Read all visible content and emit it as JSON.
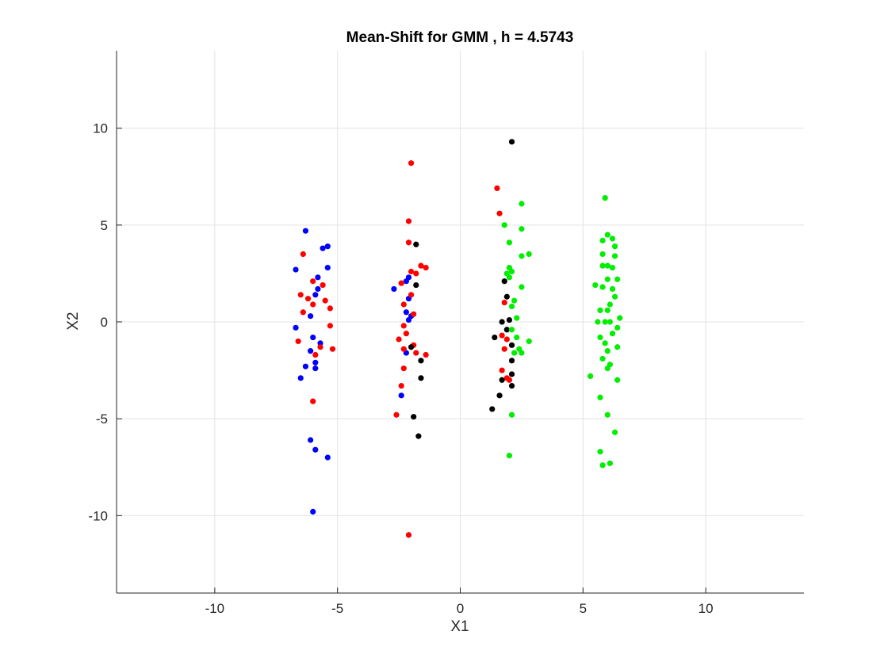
{
  "chart_data": {
    "type": "scatter",
    "title": "Mean-Shift for GMM , h = 4.5743",
    "xlabel": "X1",
    "ylabel": "X2",
    "xlim": [
      -14,
      14
    ],
    "ylim": [
      -14,
      14
    ],
    "xticks": [
      -10,
      -5,
      0,
      5,
      10
    ],
    "yticks": [
      -10,
      -5,
      0,
      5,
      10
    ],
    "grid": true,
    "series": [
      {
        "color": "#0000ff",
        "points": [
          [
            -6.3,
            4.7
          ],
          [
            -5.6,
            3.8
          ],
          [
            -5.4,
            3.9
          ],
          [
            -5.4,
            2.8
          ],
          [
            -6.7,
            2.7
          ],
          [
            -5.8,
            2.3
          ],
          [
            -5.8,
            1.7
          ],
          [
            -5.9,
            1.4
          ],
          [
            -6.1,
            0.3
          ],
          [
            -6.7,
            -0.3
          ],
          [
            -6.0,
            -0.8
          ],
          [
            -5.7,
            -1.1
          ],
          [
            -6.1,
            -1.5
          ],
          [
            -5.9,
            -2.1
          ],
          [
            -6.3,
            -2.3
          ],
          [
            -5.9,
            -2.4
          ],
          [
            -6.5,
            -2.9
          ],
          [
            -6.1,
            -6.1
          ],
          [
            -5.9,
            -6.6
          ],
          [
            -5.4,
            -7.0
          ],
          [
            -6.0,
            -9.8
          ],
          [
            -2.1,
            2.3
          ],
          [
            -2.2,
            2.1
          ],
          [
            -2.7,
            1.7
          ],
          [
            -2.2,
            0.5
          ],
          [
            -2.0,
            0.3
          ],
          [
            -2.1,
            0.1
          ],
          [
            -2.1,
            1.2
          ],
          [
            -2.2,
            -1.6
          ],
          [
            -2.4,
            -3.8
          ]
        ]
      },
      {
        "color": "#ff0000",
        "points": [
          [
            -6.4,
            3.5
          ],
          [
            -6.0,
            2.1
          ],
          [
            -5.6,
            1.9
          ],
          [
            -6.5,
            1.4
          ],
          [
            -6.2,
            1.2
          ],
          [
            -5.5,
            1.1
          ],
          [
            -6.0,
            0.9
          ],
          [
            -5.3,
            0.7
          ],
          [
            -6.4,
            0.5
          ],
          [
            -5.3,
            -0.2
          ],
          [
            -6.6,
            -1.0
          ],
          [
            -5.7,
            -1.3
          ],
          [
            -5.2,
            -1.4
          ],
          [
            -5.9,
            -1.7
          ],
          [
            -6.0,
            -4.1
          ],
          [
            -2.0,
            8.2
          ],
          [
            -2.1,
            5.2
          ],
          [
            -2.1,
            4.1
          ],
          [
            -1.6,
            2.9
          ],
          [
            -1.8,
            2.5
          ],
          [
            -2.0,
            2.6
          ],
          [
            -2.4,
            2.0
          ],
          [
            -2.0,
            1.4
          ],
          [
            -2.3,
            0.9
          ],
          [
            -1.9,
            0.4
          ],
          [
            -2.3,
            -0.2
          ],
          [
            -2.2,
            -0.6
          ],
          [
            -2.5,
            -0.9
          ],
          [
            -1.9,
            -1.2
          ],
          [
            -2.3,
            -1.4
          ],
          [
            -1.8,
            -1.6
          ],
          [
            -1.4,
            -1.7
          ],
          [
            -2.3,
            -2.4
          ],
          [
            -2.4,
            -3.3
          ],
          [
            -2.6,
            -4.8
          ],
          [
            -2.1,
            -11.0
          ],
          [
            -1.4,
            2.8
          ],
          [
            1.5,
            6.9
          ],
          [
            1.6,
            5.6
          ],
          [
            1.8,
            1.0
          ],
          [
            1.7,
            -0.7
          ],
          [
            1.9,
            -0.9
          ],
          [
            1.8,
            -1.4
          ],
          [
            1.7,
            -2.5
          ],
          [
            1.9,
            -2.9
          ],
          [
            2.0,
            -3.0
          ]
        ]
      },
      {
        "color": "#000000",
        "points": [
          [
            -1.8,
            4.0
          ],
          [
            -1.8,
            1.9
          ],
          [
            -2.0,
            -1.3
          ],
          [
            -1.6,
            -2.0
          ],
          [
            -1.6,
            -2.9
          ],
          [
            -1.9,
            -4.9
          ],
          [
            -1.7,
            -5.9
          ],
          [
            2.1,
            9.3
          ],
          [
            1.8,
            2.1
          ],
          [
            1.9,
            1.3
          ],
          [
            2.0,
            0.1
          ],
          [
            1.7,
            0.0
          ],
          [
            1.9,
            -0.4
          ],
          [
            1.4,
            -0.8
          ],
          [
            2.1,
            -1.2
          ],
          [
            2.1,
            -2.0
          ],
          [
            2.1,
            -2.7
          ],
          [
            1.7,
            -3.0
          ],
          [
            2.1,
            -3.3
          ],
          [
            1.6,
            -3.8
          ],
          [
            1.3,
            -4.5
          ]
        ]
      },
      {
        "color": "#00ee00",
        "points": [
          [
            2.5,
            6.1
          ],
          [
            1.8,
            5.0
          ],
          [
            2.5,
            4.8
          ],
          [
            2.0,
            4.1
          ],
          [
            2.5,
            3.4
          ],
          [
            2.8,
            3.5
          ],
          [
            2.0,
            2.8
          ],
          [
            2.1,
            2.6
          ],
          [
            1.9,
            2.5
          ],
          [
            2.0,
            2.3
          ],
          [
            2.5,
            1.8
          ],
          [
            2.2,
            1.1
          ],
          [
            2.1,
            0.8
          ],
          [
            2.3,
            0.2
          ],
          [
            2.1,
            -0.4
          ],
          [
            2.4,
            -1.4
          ],
          [
            2.2,
            -1.6
          ],
          [
            2.5,
            -1.6
          ],
          [
            2.8,
            -1.0
          ],
          [
            2.3,
            -0.8
          ],
          [
            2.1,
            -4.8
          ],
          [
            2.0,
            -6.9
          ],
          [
            5.9,
            6.4
          ],
          [
            6.0,
            4.5
          ],
          [
            6.2,
            4.3
          ],
          [
            5.8,
            4.2
          ],
          [
            6.3,
            3.9
          ],
          [
            6.3,
            3.4
          ],
          [
            5.8,
            3.5
          ],
          [
            6.0,
            2.9
          ],
          [
            5.8,
            2.9
          ],
          [
            6.2,
            2.8
          ],
          [
            6.0,
            2.2
          ],
          [
            6.4,
            2.2
          ],
          [
            5.5,
            1.9
          ],
          [
            5.8,
            1.8
          ],
          [
            6.2,
            1.7
          ],
          [
            6.3,
            1.3
          ],
          [
            6.1,
            0.9
          ],
          [
            6.0,
            0.6
          ],
          [
            5.7,
            0.6
          ],
          [
            6.5,
            0.2
          ],
          [
            6.1,
            0.0
          ],
          [
            5.9,
            0.0
          ],
          [
            5.6,
            0.0
          ],
          [
            6.4,
            -0.3
          ],
          [
            6.2,
            -0.6
          ],
          [
            5.7,
            -0.8
          ],
          [
            5.9,
            -1.1
          ],
          [
            6.4,
            -1.3
          ],
          [
            6.0,
            -1.5
          ],
          [
            5.8,
            -1.9
          ],
          [
            6.1,
            -2.2
          ],
          [
            6.0,
            -2.4
          ],
          [
            5.3,
            -2.8
          ],
          [
            6.4,
            -3.0
          ],
          [
            5.7,
            -3.9
          ],
          [
            6.0,
            -4.8
          ],
          [
            6.3,
            -5.7
          ],
          [
            5.7,
            -6.7
          ],
          [
            5.8,
            -7.4
          ],
          [
            6.1,
            -7.3
          ]
        ]
      }
    ]
  }
}
